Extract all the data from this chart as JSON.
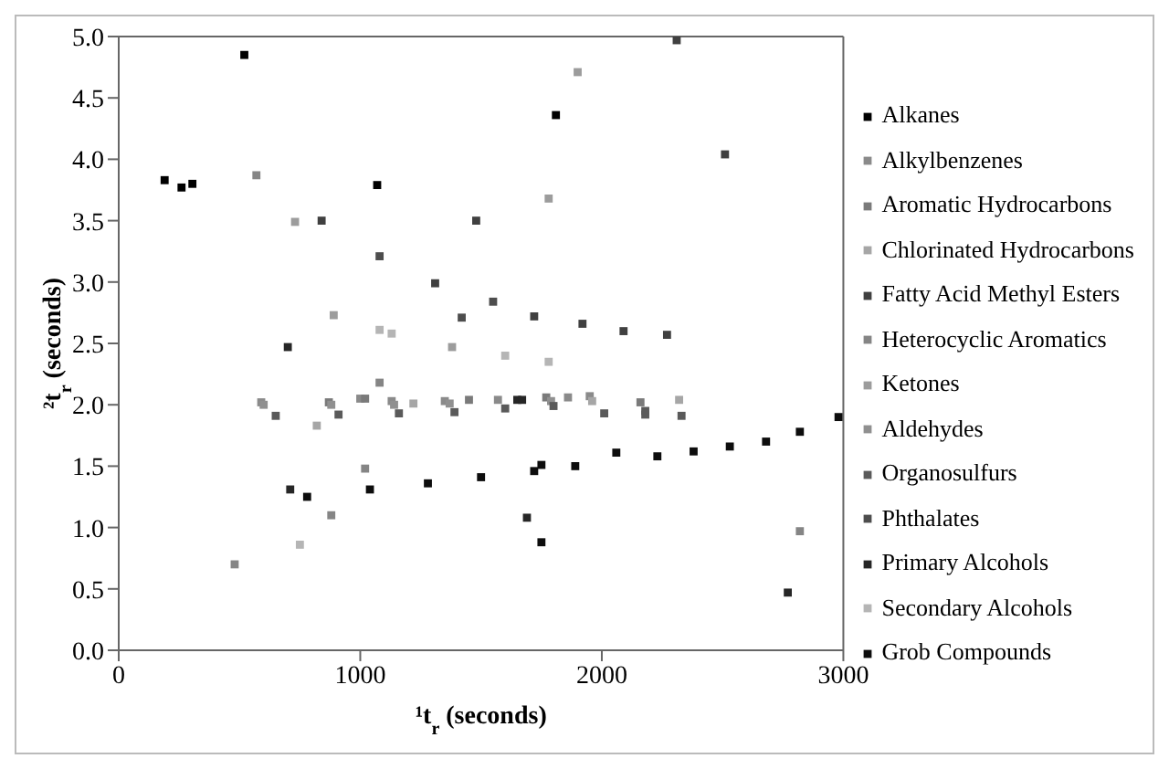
{
  "chart_data": {
    "type": "scatter",
    "xlabel": "¹t$_{r}$ (seconds)",
    "ylabel": "²t$_{r}$ (seconds)",
    "xlim": [
      0,
      3000
    ],
    "xticks": [
      0,
      1000,
      2000,
      3000
    ],
    "ylim": [
      0,
      5
    ],
    "yticks": [
      {
        "value": 0,
        "label": "0.0"
      },
      {
        "value": 0.5,
        "label": "0.5"
      },
      {
        "value": 1,
        "label": "1.0"
      },
      {
        "value": 1.5,
        "label": "1.5"
      },
      {
        "value": 2,
        "label": "2.0"
      },
      {
        "value": 2.5,
        "label": "2.5"
      },
      {
        "value": 3,
        "label": "3.0"
      },
      {
        "value": 3.5,
        "label": "3.5"
      },
      {
        "value": 4,
        "label": "4.0"
      },
      {
        "value": 4.5,
        "label": "4.5"
      },
      {
        "value": 5,
        "label": "5.0"
      }
    ],
    "grid": false,
    "legend": "right",
    "marker": "square",
    "series": [
      {
        "name": "Alkanes",
        "color": "#000000",
        "x": [
          190,
          260,
          305,
          520,
          1070,
          1810
        ],
        "values": [
          3.83,
          3.77,
          3.8,
          4.85,
          3.79,
          4.36
        ]
      },
      {
        "name": "Alkylbenzenes",
        "color": "#8a8a8a",
        "x": [
          590,
          1000,
          1130,
          1350,
          1570,
          1860,
          1950
        ],
        "values": [
          2.02,
          2.05,
          2.03,
          2.03,
          2.04,
          2.06,
          2.07
        ]
      },
      {
        "name": "Aromatic Hydrocarbons",
        "color": "#7a7a7a",
        "x": [
          870,
          1020,
          1450,
          1770,
          2160
        ],
        "values": [
          2.02,
          2.05,
          2.04,
          2.06,
          2.02
        ]
      },
      {
        "name": "Chlorinated Hydrocarbons",
        "color": "#a6a6a6",
        "x": [
          1220,
          1960,
          2320,
          820
        ],
        "values": [
          2.01,
          2.03,
          2.04,
          1.83
        ]
      },
      {
        "name": "Fatty Acid Methyl Esters",
        "color": "#404040",
        "x": [
          840,
          1310,
          1480,
          1720,
          1920,
          2090,
          2270,
          2510,
          2310
        ],
        "values": [
          3.5,
          2.99,
          3.5,
          2.72,
          2.66,
          2.6,
          2.57,
          4.04,
          4.97
        ]
      },
      {
        "name": "Heterocyclic Aromatics",
        "color": "#858585",
        "x": [
          570,
          1080,
          1020,
          880,
          2820,
          480
        ],
        "values": [
          3.87,
          2.18,
          1.48,
          1.1,
          0.97,
          0.7
        ]
      },
      {
        "name": "Ketones",
        "color": "#9c9c9c",
        "x": [
          730,
          890,
          1380,
          1780,
          1900
        ],
        "values": [
          3.49,
          2.73,
          2.47,
          3.68,
          4.71
        ]
      },
      {
        "name": "Aldehydes",
        "color": "#909090",
        "x": [
          600,
          880,
          1140,
          1370,
          1790
        ],
        "values": [
          2,
          2,
          2,
          2.01,
          2.03
        ]
      },
      {
        "name": "Organosulfurs",
        "color": "#5a5a5a",
        "x": [
          650,
          910,
          1160,
          1390,
          1600,
          1800,
          2010,
          2180,
          2330,
          2180
        ],
        "values": [
          1.91,
          1.92,
          1.93,
          1.94,
          1.97,
          1.99,
          1.93,
          1.92,
          1.91,
          1.95
        ]
      },
      {
        "name": "Phthalates",
        "color": "#4d4d4d",
        "x": [
          1080,
          1420,
          1550
        ],
        "values": [
          3.21,
          2.71,
          2.84
        ]
      },
      {
        "name": "Primary Alcohols",
        "color": "#262626",
        "x": [
          700,
          710,
          1690,
          2770,
          1650,
          1670
        ],
        "values": [
          2.47,
          1.31,
          1.08,
          0.47,
          2.04,
          2.04
        ]
      },
      {
        "name": "Secondary Alcohols",
        "color": "#b5b5b5",
        "x": [
          1600,
          1780,
          750,
          1130,
          1080
        ],
        "values": [
          2.4,
          2.35,
          0.86,
          2.58,
          2.61
        ]
      },
      {
        "name": "Grob Compounds",
        "color": "#0d0d0d",
        "x": [
          780,
          1040,
          1280,
          1500,
          1720,
          1750,
          1890,
          2060,
          2230,
          2380,
          2530,
          2680,
          2820,
          2980,
          1750
        ],
        "values": [
          1.25,
          1.31,
          1.36,
          1.41,
          1.46,
          1.51,
          1.5,
          1.61,
          1.58,
          1.62,
          1.66,
          1.7,
          1.78,
          1.9,
          0.88
        ]
      }
    ]
  }
}
